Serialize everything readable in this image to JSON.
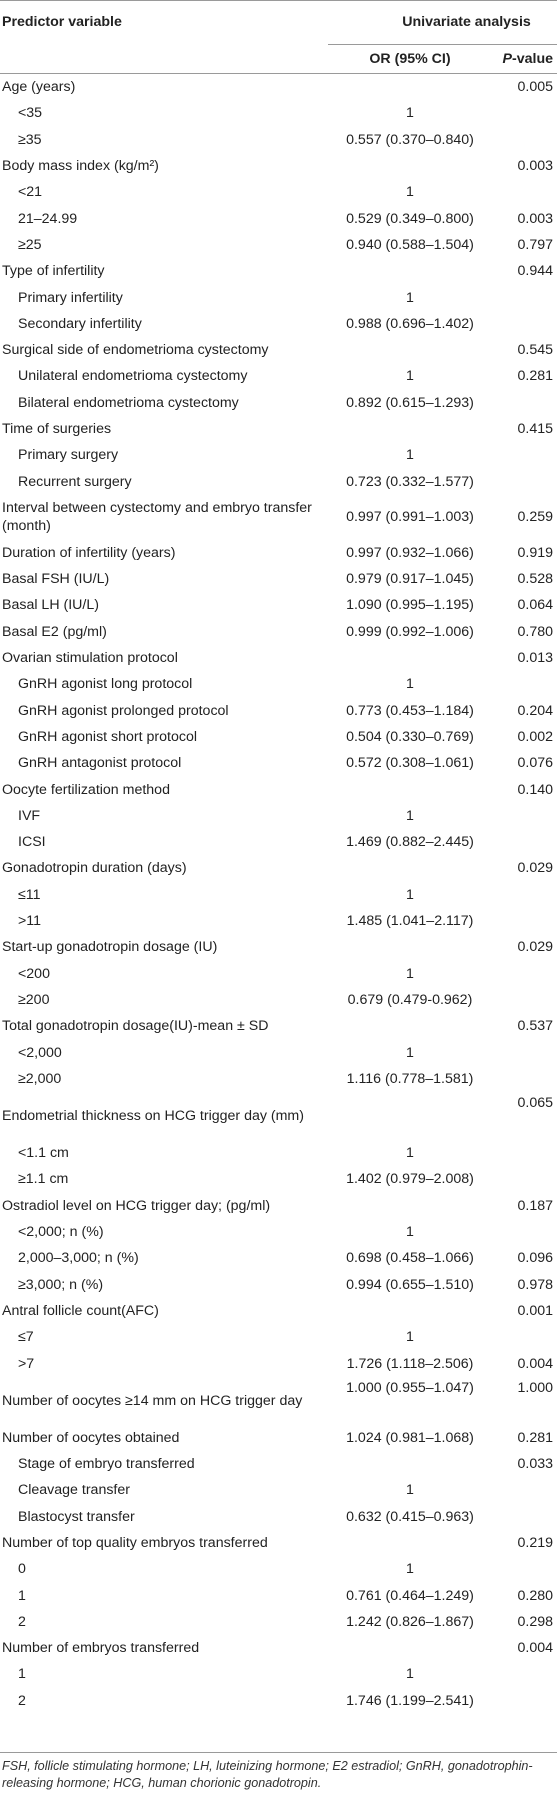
{
  "header": {
    "predictor_variable": "Predictor variable",
    "univariate_analysis": "Univariate analysis",
    "or_ci": "OR (95% CI)",
    "p_value_italic": "P",
    "p_value_suffix": "-value"
  },
  "rows": [
    {
      "label": "Age (years)",
      "indent": false,
      "or": "",
      "p": "0.005"
    },
    {
      "label": "<35",
      "indent": true,
      "or": "1",
      "p": ""
    },
    {
      "label": "≥35",
      "indent": true,
      "or": "0.557 (0.370–0.840)",
      "p": ""
    },
    {
      "label": "Body mass index (kg/m²)",
      "indent": false,
      "or": "",
      "p": "0.003"
    },
    {
      "label": "<21",
      "indent": true,
      "or": "1",
      "p": ""
    },
    {
      "label": "21–24.99",
      "indent": true,
      "or": "0.529 (0.349–0.800)",
      "p": "0.003"
    },
    {
      "label": "≥25",
      "indent": true,
      "or": "0.940 (0.588–1.504)",
      "p": "0.797"
    },
    {
      "label": "Type of infertility",
      "indent": false,
      "or": "",
      "p": "0.944"
    },
    {
      "label": "Primary infertility",
      "indent": true,
      "or": "1",
      "p": ""
    },
    {
      "label": "Secondary infertility",
      "indent": true,
      "or": "0.988 (0.696–1.402)",
      "p": ""
    },
    {
      "label": "Surgical side of endometrioma cystectomy",
      "indent": false,
      "or": "",
      "p": "0.545"
    },
    {
      "label": "Unilateral endometrioma cystectomy",
      "indent": true,
      "or": "1",
      "p": "0.281"
    },
    {
      "label": "Bilateral endometrioma cystectomy",
      "indent": true,
      "or": "0.892 (0.615–1.293)",
      "p": ""
    },
    {
      "label": "Time of surgeries",
      "indent": false,
      "or": "",
      "p": "0.415"
    },
    {
      "label": "Primary surgery",
      "indent": true,
      "or": "1",
      "p": ""
    },
    {
      "label": "Recurrent surgery",
      "indent": true,
      "or": "0.723 (0.332–1.577)",
      "p": ""
    },
    {
      "label": "Interval between cystectomy and embryo transfer (month)",
      "indent": false,
      "or": "0.997 (0.991–1.003)",
      "p": "0.259",
      "tall": true
    },
    {
      "label": "Duration of infertility (years)",
      "indent": false,
      "or": "0.997 (0.932–1.066)",
      "p": "0.919"
    },
    {
      "label": "Basal FSH (IU/L)",
      "indent": false,
      "or": "0.979 (0.917–1.045)",
      "p": "0.528"
    },
    {
      "label": "Basal LH (IU/L)",
      "indent": false,
      "or": "1.090 (0.995–1.195)",
      "p": "0.064"
    },
    {
      "label": "Basal E2 (pg/ml)",
      "indent": false,
      "or": "0.999 (0.992–1.006)",
      "p": "0.780"
    },
    {
      "label": "Ovarian stimulation protocol",
      "indent": false,
      "or": "",
      "p": "0.013"
    },
    {
      "label": "GnRH agonist long protocol",
      "indent": true,
      "or": "1",
      "p": ""
    },
    {
      "label": "GnRH agonist prolonged protocol",
      "indent": true,
      "or": "0.773 (0.453–1.184)",
      "p": "0.204"
    },
    {
      "label": "GnRH agonist short protocol",
      "indent": true,
      "or": "0.504 (0.330–0.769)",
      "p": "0.002"
    },
    {
      "label": "GnRH antagonist protocol",
      "indent": true,
      "or": "0.572 (0.308–1.061)",
      "p": "0.076"
    },
    {
      "label": "Oocyte fertilization method",
      "indent": false,
      "or": "",
      "p": "0.140"
    },
    {
      "label": "IVF",
      "indent": true,
      "or": "1",
      "p": ""
    },
    {
      "label": "ICSI",
      "indent": true,
      "or": "1.469 (0.882–2.445)",
      "p": ""
    },
    {
      "label": "Gonadotropin duration (days)",
      "indent": false,
      "or": "",
      "p": "0.029"
    },
    {
      "label": "≤11",
      "indent": true,
      "or": "1",
      "p": ""
    },
    {
      "label": ">11",
      "indent": true,
      "or": "1.485 (1.041–2.117)",
      "p": ""
    },
    {
      "label": "Start-up gonadotropin dosage (IU)",
      "indent": false,
      "or": "",
      "p": "0.029"
    },
    {
      "label": "<200",
      "indent": true,
      "or": "1",
      "p": ""
    },
    {
      "label": "≥200",
      "indent": true,
      "or": "0.679 (0.479-0.962)",
      "p": ""
    },
    {
      "label": "Total gonadotropin dosage(IU)-mean ± SD",
      "indent": false,
      "or": "",
      "p": "0.537"
    },
    {
      "label": "<2,000",
      "indent": true,
      "or": "1",
      "p": ""
    },
    {
      "label": "≥2,000",
      "indent": true,
      "or": "1.116 (0.778–1.581)",
      "p": ""
    },
    {
      "label": "Endometrial thickness on HCG trigger day (mm)",
      "indent": false,
      "or": "",
      "p": "0.065",
      "tall": true,
      "ptop": true
    },
    {
      "label": "<1.1 cm",
      "indent": true,
      "or": "1",
      "p": ""
    },
    {
      "label": "≥1.1 cm",
      "indent": true,
      "or": "1.402 (0.979–2.008)",
      "p": ""
    },
    {
      "label": "Ostradiol level on HCG trigger day; (pg/ml)",
      "indent": false,
      "or": "",
      "p": "0.187"
    },
    {
      "label": "<2,000; n (%)",
      "indent": true,
      "or": "1",
      "p": ""
    },
    {
      "label": "2,000–3,000; n (%)",
      "indent": true,
      "or": "0.698 (0.458–1.066)",
      "p": "0.096"
    },
    {
      "label": "≥3,000; n (%)",
      "indent": true,
      "or": "0.994 (0.655–1.510)",
      "p": "0.978"
    },
    {
      "label": "Antral follicle count(AFC)",
      "indent": false,
      "or": "",
      "p": "0.001"
    },
    {
      "label": "≤7",
      "indent": true,
      "or": "1",
      "p": ""
    },
    {
      "label": ">7",
      "indent": true,
      "or": "1.726 (1.118–2.506)",
      "p": "0.004"
    },
    {
      "label": "Number of oocytes ≥14 mm on HCG trigger day",
      "indent": false,
      "or": "1.000 (0.955–1.047)",
      "p": "1.000",
      "tall": true,
      "ptop": true
    },
    {
      "label": "Number of oocytes obtained",
      "indent": false,
      "or": "1.024 (0.981–1.068)",
      "p": "0.281"
    },
    {
      "label": "Stage of embryo transferred",
      "indent": true,
      "or": "",
      "p": "0.033"
    },
    {
      "label": "Cleavage transfer",
      "indent": true,
      "or": "1",
      "p": ""
    },
    {
      "label": "Blastocyst transfer",
      "indent": true,
      "or": "0.632 (0.415–0.963)",
      "p": ""
    },
    {
      "label": "Number of top quality embryos transferred",
      "indent": false,
      "or": "",
      "p": "0.219"
    },
    {
      "label": "0",
      "indent": true,
      "or": "1",
      "p": ""
    },
    {
      "label": "1",
      "indent": true,
      "or": "0.761 (0.464–1.249)",
      "p": "0.280"
    },
    {
      "label": "2",
      "indent": true,
      "or": "1.242 (0.826–1.867)",
      "p": "0.298"
    },
    {
      "label": "Number of embryos transferred",
      "indent": false,
      "or": "",
      "p": "0.004"
    },
    {
      "label": "1",
      "indent": true,
      "or": "1",
      "p": ""
    },
    {
      "label": "2",
      "indent": true,
      "or": "1.746 (1.199–2.541)",
      "p": ""
    }
  ],
  "footnote": "FSH, follicle stimulating hormone; LH, luteinizing hormone; E2 estradiol; GnRH, gonadotrophin-releasing hormone; HCG, human chorionic gonadotropin."
}
